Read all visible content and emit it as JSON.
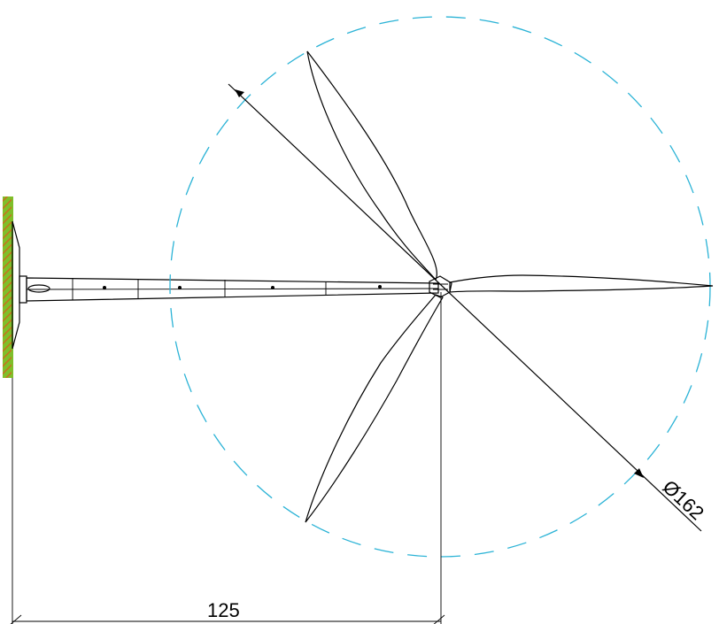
{
  "drawing": {
    "height_dimension": "125",
    "diameter_dimension": "Ø162",
    "colors": {
      "line": "#000000",
      "rotor_circle": "#2bb3d6",
      "ground_hatch": "#c8701e",
      "ground_fill": "#7fbf2a"
    }
  }
}
